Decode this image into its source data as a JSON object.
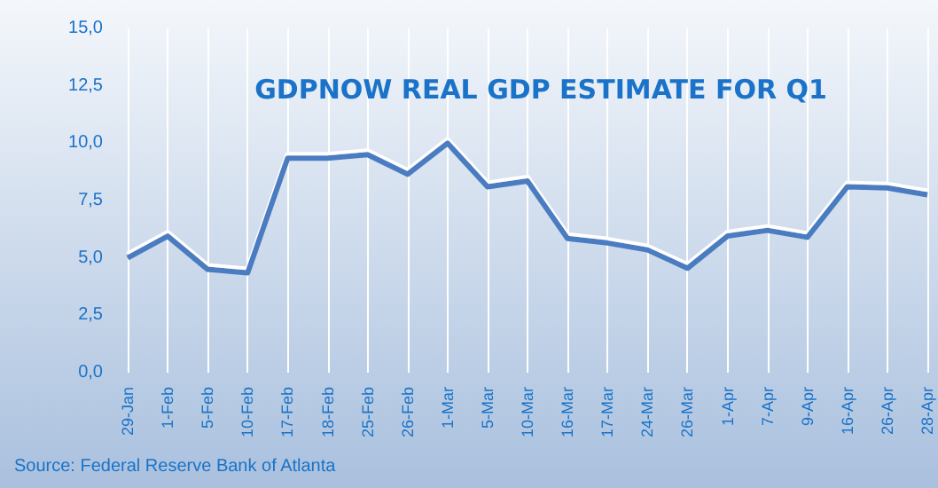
{
  "chart_data": {
    "type": "line",
    "title": "GDPNOW REAL GDP ESTIMATE FOR Q1",
    "annotations": [
      "Source: Federal Reserve Bank of Atlanta"
    ],
    "categories": [
      "29-Jan",
      "1-Feb",
      "5-Feb",
      "10-Feb",
      "17-Feb",
      "18-Feb",
      "25-Feb",
      "26-Feb",
      "1-Mar",
      "5-Mar",
      "10-Mar",
      "16-Mar",
      "17-Mar",
      "24-Mar",
      "26-Mar",
      "1-Apr",
      "7-Apr",
      "9-Apr",
      "16-Apr",
      "26-Apr",
      "28-Apr"
    ],
    "series": [
      {
        "color": "#4a7cc0",
        "values": [
          5.0,
          5.95,
          4.5,
          4.35,
          9.35,
          9.35,
          9.5,
          8.65,
          10.0,
          8.1,
          8.35,
          5.85,
          5.65,
          5.35,
          4.55,
          5.95,
          6.2,
          5.9,
          8.1,
          8.05,
          7.75
        ]
      }
    ],
    "ylim": [
      0,
      15
    ],
    "yticks": [
      {
        "value": 0,
        "label": "0,0"
      },
      {
        "value": 2.5,
        "label": "2,5"
      },
      {
        "value": 5,
        "label": "5,0"
      },
      {
        "value": 7.5,
        "label": "7,5"
      },
      {
        "value": 10,
        "label": "10,0"
      },
      {
        "value": 12.5,
        "label": "12,5"
      },
      {
        "value": 15,
        "label": "15,0"
      }
    ],
    "grid": "x",
    "marker": "none",
    "line_style": "solid"
  }
}
